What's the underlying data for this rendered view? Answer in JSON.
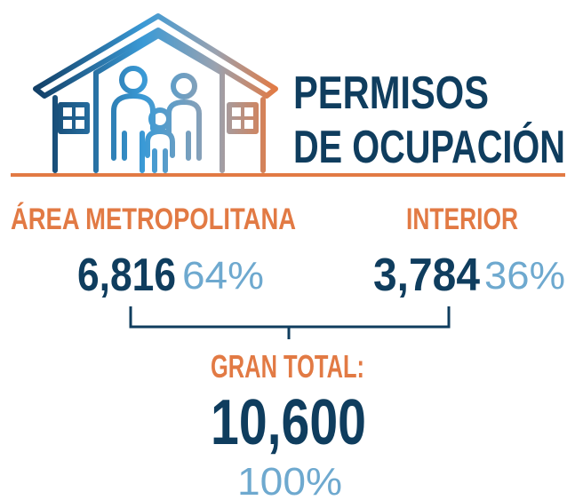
{
  "header": {
    "title_lines": [
      "PERMISOS",
      "DE OCUPACIÓN"
    ]
  },
  "regions": [
    {
      "label": "ÁREA METROPOLITANA",
      "value": "6,816",
      "share": "64%"
    },
    {
      "label": "INTERIOR",
      "value": "3,784",
      "share": "36%"
    }
  ],
  "total": {
    "label": "GRAN TOTAL:",
    "value": "10,600",
    "share": "100%"
  }
}
